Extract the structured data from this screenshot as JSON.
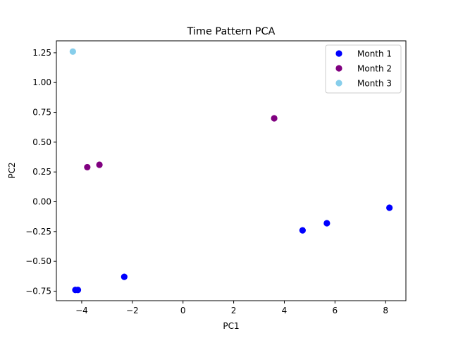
{
  "chart_data": {
    "type": "scatter",
    "title": "Time Pattern PCA",
    "xlabel": "PC1",
    "ylabel": "PC2",
    "xlim": [
      -5.0,
      8.8
    ],
    "ylim": [
      -0.83,
      1.35
    ],
    "xticks": [
      -4,
      -2,
      0,
      2,
      4,
      6,
      8
    ],
    "xtick_labels": [
      "−4",
      "−2",
      "0",
      "2",
      "4",
      "6",
      "8"
    ],
    "yticks": [
      -0.75,
      -0.5,
      -0.25,
      0.0,
      0.25,
      0.5,
      0.75,
      1.0,
      1.25
    ],
    "ytick_labels": [
      "−0.75",
      "−0.50",
      "−0.25",
      "0.00",
      "0.25",
      "0.50",
      "0.75",
      "1.00",
      "1.25"
    ],
    "grid": false,
    "legend_position": "top-right",
    "series": [
      {
        "name": "Month 1",
        "color": "#0000ff",
        "points": [
          {
            "x": -4.25,
            "y": -0.74
          },
          {
            "x": -4.15,
            "y": -0.74
          },
          {
            "x": -2.32,
            "y": -0.63
          },
          {
            "x": 4.72,
            "y": -0.24
          },
          {
            "x": 5.68,
            "y": -0.18
          },
          {
            "x": 8.15,
            "y": -0.05
          }
        ]
      },
      {
        "name": "Month 2",
        "color": "#800080",
        "points": [
          {
            "x": -3.78,
            "y": 0.29
          },
          {
            "x": -3.3,
            "y": 0.31
          },
          {
            "x": 3.6,
            "y": 0.7
          }
        ]
      },
      {
        "name": "Month 3",
        "color": "#87ceeb",
        "points": [
          {
            "x": -4.35,
            "y": 1.26
          }
        ]
      }
    ]
  }
}
